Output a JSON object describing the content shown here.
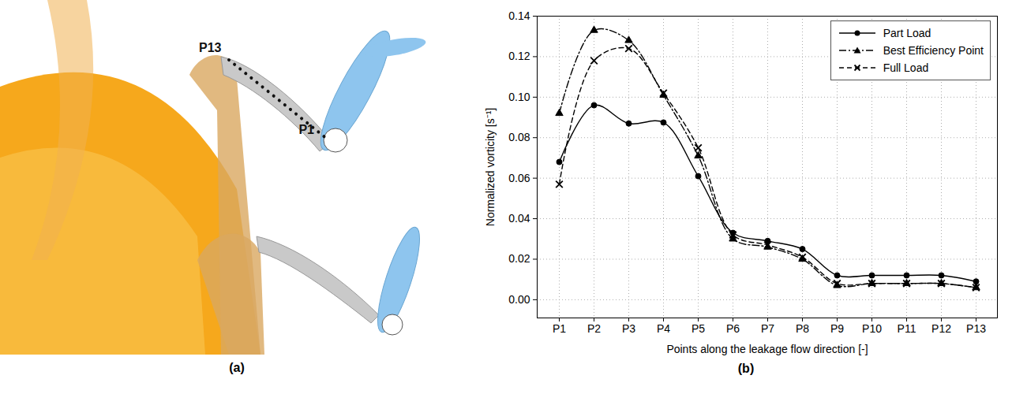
{
  "diagram": {
    "panel_label": "(a)",
    "labels": [
      "P13",
      "P1"
    ]
  },
  "chart_data": {
    "type": "line",
    "panel_label": "(b)",
    "x_label": "Points along the leakage flow direction [-]",
    "y_label": "Normalized vorticity [s⁻¹]",
    "categories": [
      "P1",
      "P2",
      "P3",
      "P4",
      "P5",
      "P6",
      "P7",
      "P8",
      "P9",
      "P10",
      "P11",
      "P12",
      "P13"
    ],
    "series": [
      {
        "name": "Part Load",
        "color": "#000000",
        "marker": "circle",
        "line_style": "solid",
        "values": [
          0.068,
          0.096,
          0.087,
          0.0875,
          0.061,
          0.033,
          0.029,
          0.025,
          0.012,
          0.012,
          0.012,
          0.012,
          0.009
        ]
      },
      {
        "name": "Best Efficiency Point",
        "color": "#000000",
        "marker": "triangle",
        "line_style": "dashdot",
        "values": [
          0.092,
          0.133,
          0.128,
          0.101,
          0.071,
          0.03,
          0.026,
          0.02,
          0.007,
          0.008,
          0.008,
          0.008,
          0.006
        ]
      },
      {
        "name": "Full Load",
        "color": "#000000",
        "marker": "times",
        "line_style": "dashed",
        "values": [
          0.057,
          0.118,
          0.124,
          0.102,
          0.075,
          0.032,
          0.027,
          0.021,
          0.008,
          0.008,
          0.008,
          0.008,
          0.006
        ]
      }
    ],
    "ylim": [
      -0.009,
      0.14
    ],
    "yticks": [
      {
        "value": 0,
        "label": "0.00"
      },
      {
        "value": 0.02,
        "label": "0.02"
      },
      {
        "value": 0.04,
        "label": "0.04"
      },
      {
        "value": 0.06,
        "label": "0.06"
      },
      {
        "value": 0.08,
        "label": "0.08"
      },
      {
        "value": 0.1,
        "label": "0.10"
      },
      {
        "value": 0.12,
        "label": "0.12"
      },
      {
        "value": 0.14,
        "label": "0.14"
      }
    ],
    "grid": true,
    "legend": "top-right"
  }
}
